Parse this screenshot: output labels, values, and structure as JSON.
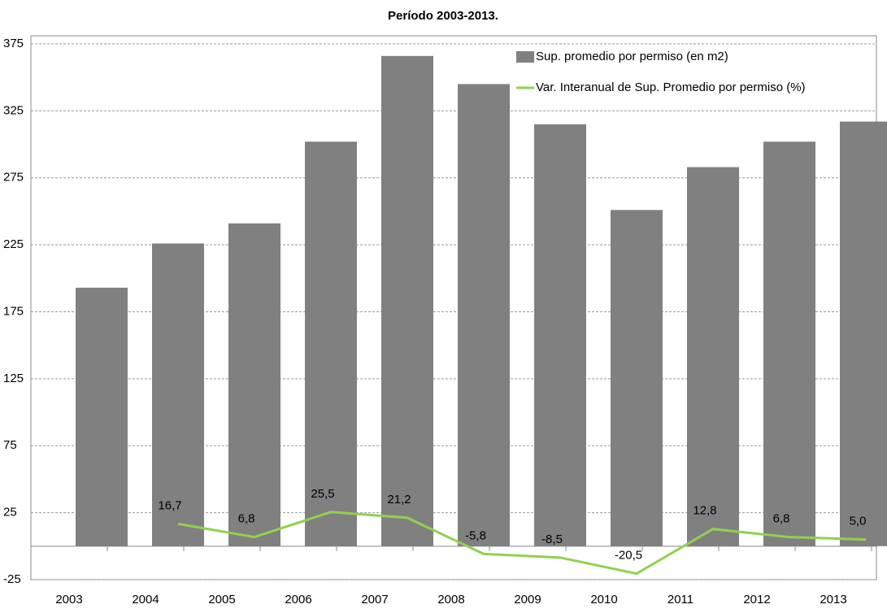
{
  "chart_data": {
    "type": "bar-line",
    "title": "Período 2003-2013.",
    "categories": [
      "2003",
      "2004",
      "2005",
      "2006",
      "2007",
      "2008",
      "2009",
      "2010",
      "2011",
      "2012",
      "2013"
    ],
    "series": [
      {
        "name": "Sup. promedio por permiso (en m2)",
        "type": "bar",
        "color": "#808080",
        "values": [
          193,
          226,
          241,
          302,
          366,
          345,
          315,
          251,
          283,
          302,
          317
        ]
      },
      {
        "name": "Var. Interanual de Sup. Promedio por permiso (%)",
        "type": "line",
        "color": "#92d050",
        "values": [
          null,
          16.7,
          6.8,
          25.5,
          21.2,
          -5.8,
          -8.5,
          -20.5,
          12.8,
          6.8,
          5.0
        ],
        "value_labels": [
          null,
          "16,7",
          "6,8",
          "25,5",
          "21,2",
          "-5,8",
          "-8,5",
          "-20,5",
          "12,8",
          "6,8",
          "5,0"
        ]
      }
    ],
    "ylim": [
      -25,
      375
    ],
    "yticks": [
      -25,
      25,
      75,
      125,
      175,
      225,
      275,
      325,
      375
    ],
    "grid": true,
    "legend": "top-right"
  }
}
